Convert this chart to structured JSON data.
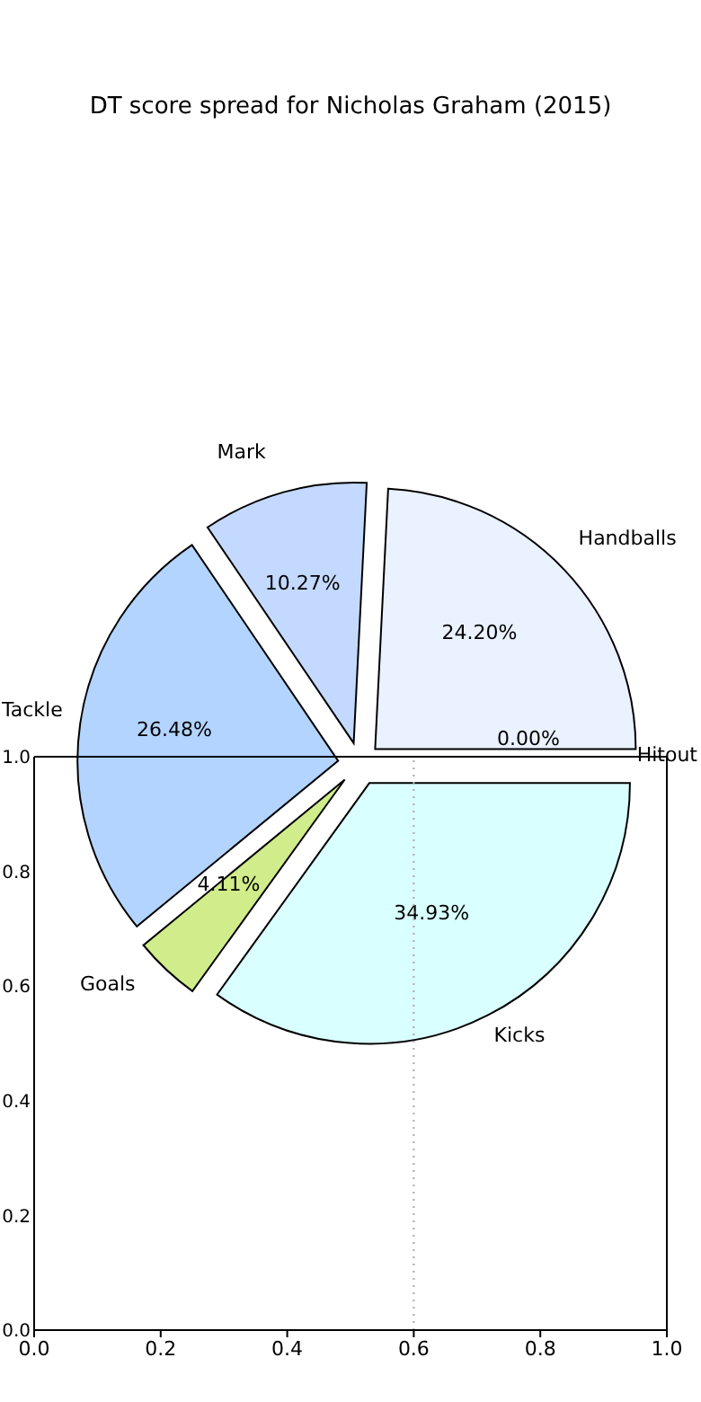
{
  "chart_data": [
    {
      "type": "pie",
      "title": "DT score spread for Nicholas Graham (2015)",
      "categories": [
        "Handballs",
        "Mark",
        "Tackle",
        "Goals",
        "Kicks",
        "Hitout"
      ],
      "values": [
        24.2,
        10.27,
        26.48,
        4.11,
        34.93,
        0.0
      ],
      "value_labels": [
        "24.20%",
        "10.27%",
        "26.48%",
        "4.11%",
        "34.93%",
        "0.00%"
      ],
      "colors": [
        "#eaf1ff",
        "#c4d9ff",
        "#b3d4ff",
        "#d1ec8a",
        "#d9ffff",
        "#ffffff"
      ]
    },
    {
      "type": "scatter",
      "xlim": [
        0,
        1
      ],
      "ylim": [
        0,
        1
      ],
      "xticks": [
        {
          "value": 0,
          "label": "0.0"
        },
        {
          "value": 0.2,
          "label": "0.2"
        },
        {
          "value": 0.4,
          "label": "0.4"
        },
        {
          "value": 0.6,
          "label": "0.6"
        },
        {
          "value": 0.8,
          "label": "0.8"
        },
        {
          "value": 1,
          "label": "1.0"
        }
      ],
      "yticks": [
        {
          "value": 0,
          "label": "0.0"
        },
        {
          "value": 0.2,
          "label": "0.2"
        },
        {
          "value": 0.4,
          "label": "0.4"
        },
        {
          "value": 0.6,
          "label": "0.6"
        },
        {
          "value": 0.8,
          "label": "0.8"
        },
        {
          "value": 1,
          "label": "1.0"
        }
      ],
      "ref_lines": [
        {
          "axis": "x",
          "value": 0.6,
          "color": "#aaaaaa",
          "line_style": "dotted"
        }
      ]
    }
  ]
}
